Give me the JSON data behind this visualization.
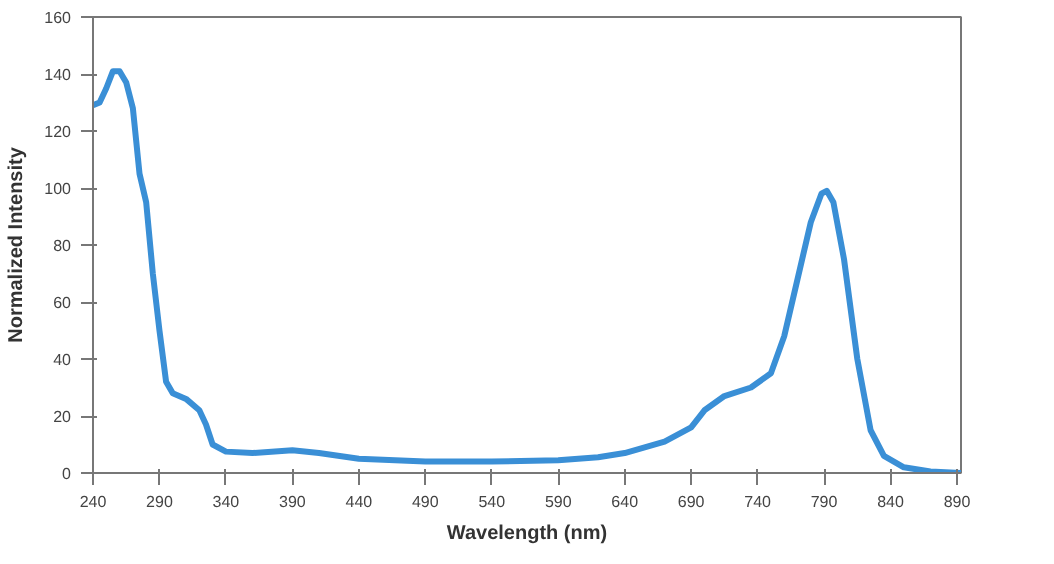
{
  "chart_data": {
    "type": "line",
    "xlabel": "Wavelength (nm)",
    "ylabel": "Normalized Intensity",
    "xlim": [
      240,
      893
    ],
    "ylim": [
      0,
      160
    ],
    "xticks": [
      240,
      290,
      340,
      390,
      440,
      490,
      540,
      590,
      640,
      690,
      740,
      790,
      840,
      890
    ],
    "yticks": [
      0,
      20,
      40,
      60,
      80,
      100,
      120,
      140,
      160
    ],
    "grid": false,
    "series": [
      {
        "color": "#3a8fd6",
        "x": [
          240,
          245,
          250,
          255,
          260,
          265,
          270,
          275,
          280,
          285,
          290,
          295,
          300,
          310,
          320,
          325,
          330,
          340,
          360,
          390,
          410,
          440,
          490,
          540,
          590,
          620,
          640,
          670,
          690,
          700,
          715,
          735,
          750,
          760,
          770,
          780,
          788,
          792,
          797,
          805,
          815,
          825,
          835,
          850,
          870,
          893
        ],
        "values": [
          129,
          130,
          135,
          141,
          141,
          137,
          128,
          105,
          95,
          70,
          50,
          32,
          28,
          26,
          22,
          17,
          10,
          7.5,
          7,
          8,
          7,
          5,
          4,
          4,
          4.5,
          5.5,
          7,
          11,
          16,
          22,
          27,
          30,
          35,
          48,
          68,
          88,
          98,
          99,
          95,
          75,
          40,
          15,
          6,
          2,
          0.5,
          0
        ]
      }
    ]
  }
}
